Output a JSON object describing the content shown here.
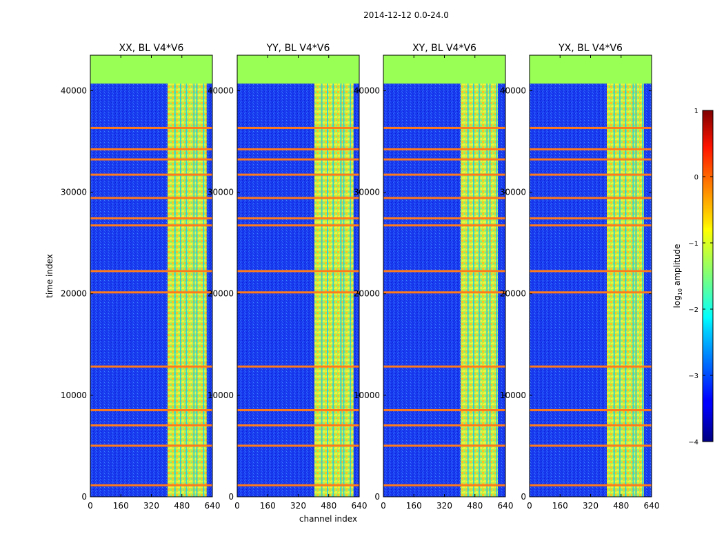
{
  "chart_data": {
    "type": "heatmap",
    "suptitle": "2014-12-12 0.0-24.0",
    "xlabel": "channel index",
    "ylabel": "time index",
    "xlim": [
      0,
      640
    ],
    "ylim": [
      0,
      43500
    ],
    "x_ticks": [
      0,
      160,
      320,
      480,
      640
    ],
    "y_ticks": [
      0,
      10000,
      20000,
      30000,
      40000
    ],
    "x_tick_labels": [
      "0",
      "160",
      "320",
      "480",
      "640"
    ],
    "y_tick_labels": [
      "0",
      "10000",
      "20000",
      "30000",
      "40000"
    ],
    "colorbar": {
      "label": "log10 amplitude",
      "label_main": "log",
      "label_sub": "10",
      "label_rest": " amplitude",
      "vmin": -4,
      "vmax": 1,
      "ticks": [
        -4,
        -3,
        -2,
        -1,
        0,
        1
      ],
      "tick_labels": [
        "−4",
        "−3",
        "−2",
        "−1",
        "0",
        "1"
      ]
    },
    "panels": [
      {
        "title": "XX, BL V4*V6",
        "bright_channels": [
          405,
          610
        ]
      },
      {
        "title": "YY, BL V4*V6",
        "bright_channels": [
          405,
          610
        ]
      },
      {
        "title": "XY, BL V4*V6",
        "bright_channels": [
          405,
          600
        ]
      },
      {
        "title": "YX, BL V4*V6",
        "bright_channels": [
          405,
          600
        ]
      }
    ],
    "no_data_time_range": [
      40700,
      43500
    ],
    "flagged_time_rows": [
      1100,
      5000,
      7000,
      8500,
      12800,
      20100,
      22200,
      26700,
      27400,
      29400,
      31700,
      33200,
      34200,
      36300
    ],
    "rfi_channel_columns": [
      440,
      470,
      500,
      540,
      555,
      590
    ]
  }
}
